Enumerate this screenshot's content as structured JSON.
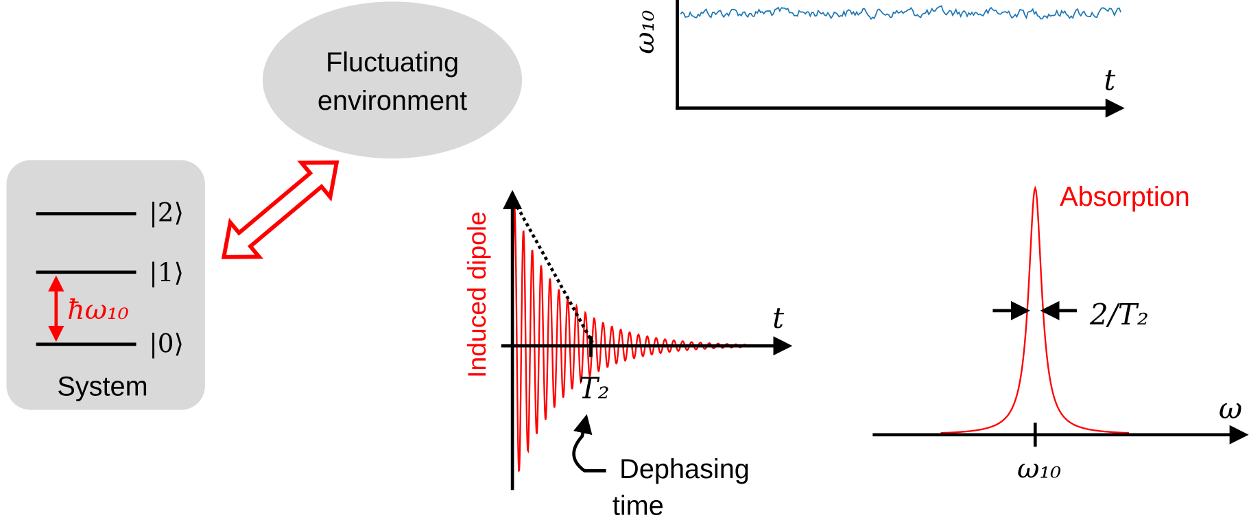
{
  "environment": {
    "label_lines": [
      "Fluctuating",
      "environment"
    ]
  },
  "system": {
    "label": "System",
    "levels": [
      "|2⟩",
      "|1⟩",
      "|0⟩"
    ],
    "transition_label": "ħω₁₀"
  },
  "fluctuation_plot": {
    "y_label": "ω₁₀",
    "x_label": "t"
  },
  "dipole_plot": {
    "y_label": "Induced dipole",
    "x_label": "t",
    "tick_label": "T₂",
    "annotation_lines": [
      "Dephasing",
      "time"
    ]
  },
  "absorption_plot": {
    "title": "Absorption",
    "x_label": "ω",
    "tick_label": "ω₁₀",
    "width_label": "2/T₂"
  }
}
